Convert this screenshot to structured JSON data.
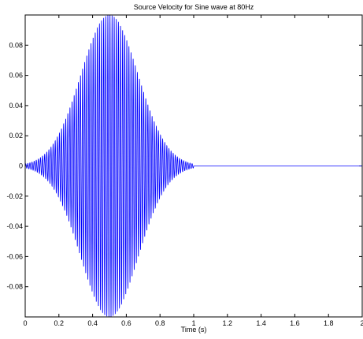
{
  "chart_data": {
    "type": "line",
    "title": "Source Velocity for Sine wave at 80Hz",
    "xlabel": "Time (s)",
    "ylabel": "",
    "xlim": [
      0,
      2
    ],
    "ylim": [
      -0.1,
      0.1
    ],
    "xticks": [
      0,
      0.2,
      0.4,
      0.6,
      0.8,
      1,
      1.2,
      1.4,
      1.6,
      1.8,
      2
    ],
    "xtick_labels": [
      "0",
      "0.2",
      "0.4",
      "0.6",
      "0.8",
      "1",
      "1.2",
      "1.4",
      "1.6",
      "1.8",
      "2"
    ],
    "yticks": [
      -0.08,
      -0.06,
      -0.04,
      -0.02,
      0,
      0.02,
      0.04,
      0.06,
      0.08
    ],
    "ytick_labels": [
      "-0.08",
      "-0.06",
      "-0.04",
      "-0.02",
      "0",
      "0.02",
      "0.04",
      "0.06",
      "0.08"
    ],
    "grid": false,
    "series": [
      {
        "frequency_hz": 80,
        "amplitude_peak": 0.1,
        "envelope": "gaussian",
        "envelope_center_s": 0.5,
        "envelope_sigma_s": 0.17,
        "signal_end_s": 1.0,
        "color": "#0000ff"
      }
    ]
  }
}
